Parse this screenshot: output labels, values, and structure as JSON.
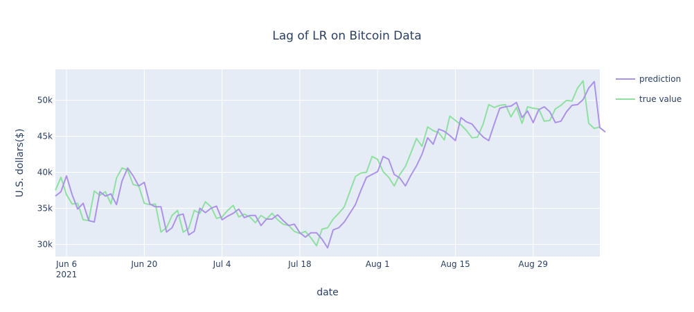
{
  "chart_data": {
    "type": "line",
    "title": "Lag of LR on Bitcoin Data",
    "xlabel": "date",
    "ylabel": "U.S. dollars($)",
    "x_start": "2021-06-04",
    "x_range": [
      "2021-06-04",
      "2021-09-10"
    ],
    "ylim": [
      28300,
      54300
    ],
    "x_ticks": [
      {
        "date": "2021-06-06",
        "label": "Jun 6",
        "sublabel": "2021"
      },
      {
        "date": "2021-06-20",
        "label": "Jun 20",
        "sublabel": ""
      },
      {
        "date": "2021-07-04",
        "label": "Jul 4",
        "sublabel": ""
      },
      {
        "date": "2021-07-18",
        "label": "Jul 18",
        "sublabel": ""
      },
      {
        "date": "2021-08-01",
        "label": "Aug 1",
        "sublabel": ""
      },
      {
        "date": "2021-08-15",
        "label": "Aug 15",
        "sublabel": ""
      },
      {
        "date": "2021-08-29",
        "label": "Aug 29",
        "sublabel": ""
      }
    ],
    "y_ticks": [
      {
        "value": 30000,
        "label": "30k"
      },
      {
        "value": 35000,
        "label": "35k"
      },
      {
        "value": 40000,
        "label": "40k"
      },
      {
        "value": 45000,
        "label": "45k"
      },
      {
        "value": 50000,
        "label": "50k"
      }
    ],
    "grid": true,
    "legend_position": "top-right",
    "background": "#e5ecf6",
    "series": [
      {
        "name": "prediction",
        "color": "#ab92e6",
        "values": [
          36700,
          37300,
          39500,
          36900,
          34900,
          35700,
          33300,
          33100,
          37300,
          36700,
          37000,
          35500,
          38800,
          40600,
          39500,
          38100,
          38600,
          35600,
          35200,
          35200,
          31700,
          32300,
          34000,
          34200,
          31300,
          31800,
          35000,
          34400,
          35000,
          35300,
          33400,
          33900,
          34300,
          34900,
          33700,
          34000,
          34000,
          32600,
          33500,
          33500,
          34100,
          33300,
          32600,
          32800,
          31600,
          31000,
          31600,
          31600,
          30700,
          29500,
          32000,
          32300,
          33100,
          34300,
          35500,
          37500,
          39300,
          39700,
          40100,
          42200,
          41800,
          39700,
          39200,
          38100,
          39600,
          40900,
          42500,
          44800,
          43900,
          46000,
          45700,
          45100,
          44400,
          47600,
          47000,
          46700,
          45700,
          44900,
          44400,
          46700,
          48900,
          49100,
          49200,
          49700,
          47600,
          48500,
          46900,
          48700,
          49100,
          48400,
          46900,
          47100,
          48400,
          49300,
          49400,
          50100,
          51700,
          52600,
          46200,
          45600
        ]
      },
      {
        "name": "true value",
        "color": "#8fe0a0",
        "values": [
          37500,
          39300,
          36900,
          35600,
          35700,
          33400,
          33300,
          37400,
          36800,
          37300,
          35600,
          39200,
          40600,
          40300,
          38300,
          38100,
          35700,
          35500,
          35600,
          31700,
          32300,
          34000,
          34700,
          31700,
          32200,
          34700,
          34300,
          35900,
          35200,
          33600,
          33800,
          34700,
          35400,
          33800,
          34200,
          33800,
          33000,
          34000,
          33500,
          34300,
          33400,
          32800,
          32600,
          31800,
          31500,
          31800,
          30900,
          29800,
          32100,
          32300,
          33500,
          34300,
          35200,
          37300,
          39400,
          39900,
          40000,
          42200,
          41800,
          40100,
          39300,
          38100,
          39700,
          40800,
          42700,
          44700,
          43600,
          46300,
          45800,
          45500,
          44500,
          47800,
          47200,
          46600,
          45800,
          44800,
          44900,
          46700,
          49400,
          49000,
          49300,
          49400,
          47700,
          49000,
          46800,
          49100,
          48900,
          48800,
          47100,
          47200,
          48800,
          49300,
          50000,
          49900,
          51700,
          52700,
          46800,
          46100,
          46300
        ]
      }
    ]
  }
}
